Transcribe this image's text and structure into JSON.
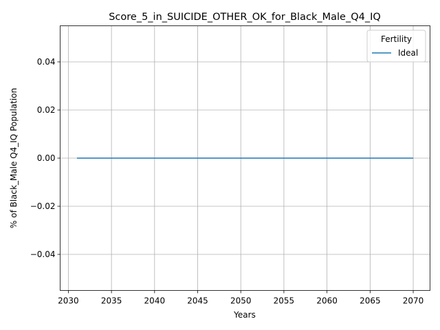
{
  "chart_data": {
    "type": "line",
    "title": "Score_5_in_SUICIDE_OTHER_OK_for_Black_Male_Q4_IQ",
    "xlabel": "Years",
    "ylabel": "% of Black_Male Q4_IQ Population",
    "xlim": [
      2029.05,
      2071.95
    ],
    "ylim": [
      -0.055,
      0.055
    ],
    "xticks": [
      2030,
      2035,
      2040,
      2045,
      2050,
      2055,
      2060,
      2065,
      2070
    ],
    "yticks": [
      -0.04,
      -0.02,
      0.0,
      0.02,
      0.04
    ],
    "ytick_labels": [
      "−0.04",
      "−0.02",
      "0.00",
      "0.02",
      "0.04"
    ],
    "grid": true,
    "legend": {
      "title": "Fertility",
      "placement": "top-right"
    },
    "series": [
      {
        "name": "Ideal",
        "color": "#1f77b4",
        "x": [
          2031,
          2032,
          2033,
          2034,
          2035,
          2036,
          2037,
          2038,
          2039,
          2040,
          2041,
          2042,
          2043,
          2044,
          2045,
          2046,
          2047,
          2048,
          2049,
          2050,
          2051,
          2052,
          2053,
          2054,
          2055,
          2056,
          2057,
          2058,
          2059,
          2060,
          2061,
          2062,
          2063,
          2064,
          2065,
          2066,
          2067,
          2068,
          2069,
          2070
        ],
        "y": [
          0,
          0,
          0,
          0,
          0,
          0,
          0,
          0,
          0,
          0,
          0,
          0,
          0,
          0,
          0,
          0,
          0,
          0,
          0,
          0,
          0,
          0,
          0,
          0,
          0,
          0,
          0,
          0,
          0,
          0,
          0,
          0,
          0,
          0,
          0,
          0,
          0,
          0,
          0,
          0
        ]
      }
    ]
  }
}
